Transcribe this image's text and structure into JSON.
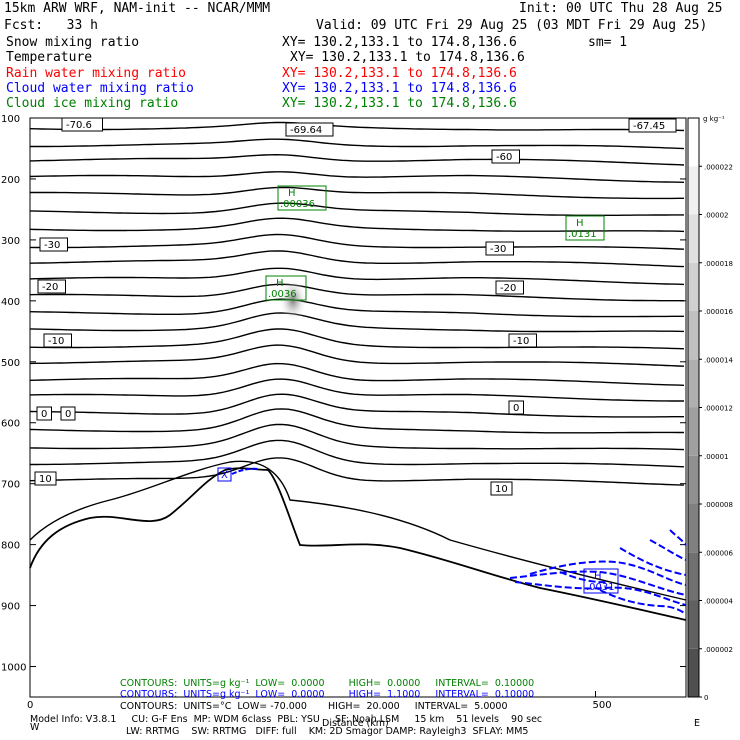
{
  "header": {
    "title": "15km ARW WRF, NAM-init -- NCAR/MMM",
    "init": "Init: 00 UTC Thu 28 Aug 25",
    "fcst": "Fcst:   33 h",
    "valid": "Valid: 09 UTC Fri 29 Aug 25 (03 MDT Fri 29 Aug 25)",
    "fields": [
      {
        "name": "Snow mixing ratio",
        "xy": "XY= 130.2,133.1 to 174.8,136.6",
        "extra": "sm= 1",
        "color": "#000000"
      },
      {
        "name": "Temperature",
        "xy": "XY= 130.2,133.1 to 174.8,136.6",
        "extra": "",
        "color": "#000000"
      },
      {
        "name": "Rain water mixing ratio",
        "xy": "XY= 130.2,133.1 to 174.8,136.6",
        "extra": "",
        "color": "#ff0000"
      },
      {
        "name": "Cloud water mixing ratio",
        "xy": "XY= 130.2,133.1 to 174.8,136.6",
        "extra": "",
        "color": "#0000ff"
      },
      {
        "name": "Cloud ice mixing ratio",
        "xy": "XY= 130.2,133.1 to 174.8,136.6",
        "extra": "",
        "color": "#008000"
      }
    ]
  },
  "chart_data": {
    "type": "contour-cross-section",
    "xlabel": "Distance (km)",
    "x_ticks": [
      "0",
      "500"
    ],
    "y_ticks": [
      "100",
      "200",
      "300",
      "400",
      "500",
      "600",
      "700",
      "800",
      "900",
      "1000"
    ],
    "y_tick_values": [
      100,
      200,
      300,
      400,
      500,
      600,
      700,
      800,
      900,
      1000
    ],
    "xlim": [
      0,
      580
    ],
    "ylim": [
      100,
      1050
    ],
    "colorbar": {
      "unit": "g kg⁻¹",
      "labels": [
        ".000022",
        ".00002",
        ".000018",
        ".000016",
        ".000014",
        ".000012",
        ".00001",
        ".000008",
        ".000006",
        ".000004",
        ".000002",
        "0"
      ],
      "values": [
        2.2e-05,
        2e-05,
        1.8e-05,
        1.6e-05,
        1.4e-05,
        1.2e-05,
        1e-05,
        8e-06,
        6e-06,
        4e-06,
        2e-06,
        0
      ],
      "range": [
        0,
        2.4e-05
      ],
      "colors": [
        "#ffffff",
        "#f0f0f0",
        "#e0e0e0",
        "#d0d0d0",
        "#c0c0c0",
        "#b0b0b0",
        "#a0a0a0",
        "#909090",
        "#808080",
        "#707070",
        "#606060",
        "#505050"
      ]
    },
    "temperature_contours": [
      {
        "label": "-70.6",
        "y": 122
      },
      {
        "label": "-69.64",
        "y": 130
      },
      {
        "label": "-67.45",
        "y": 126
      },
      {
        "label": "-60",
        "y": 158
      },
      {
        "label": "-30",
        "y": 246
      },
      {
        "label": "-20",
        "y": 288
      },
      {
        "label": "-10",
        "y": 341
      },
      {
        "label": "0",
        "y": 410
      },
      {
        "label": "10",
        "y": 480
      }
    ],
    "high_labels": [
      {
        "letter": "H",
        "value": ".00036",
        "color": "#008000"
      },
      {
        "letter": "H",
        "value": ".0131",
        "color": "#008000"
      },
      {
        "letter": "H",
        "value": ".0036",
        "color": "#008000"
      },
      {
        "letter": "H",
        "value": ".0031",
        "color": "#0000ff"
      }
    ],
    "cloud_water_marker": {
      "letter": "X",
      "color": "#0000ff"
    }
  },
  "footer": {
    "contours1": "CONTOURS:  UNITS=g kg⁻¹  LOW=  0.0000        HIGH=  0.0000     INTERVAL=  0.10000",
    "contours2": "CONTOURS:  UNITS=g kg⁻¹  LOW=  0.0000        HIGH=  1.1000     INTERVAL=  0.10000",
    "contours3": "CONTOURS:  UNITS=°C  LOW= -70.000       HIGH=  20.000     INTERVAL=  5.0000",
    "model1": "Model Info: V3.8.1     CU: G-F Ens  MP: WDM 6class  PBL: YSU     SF: Noah LSM     15 km    51 levels    90 sec",
    "model2": "LW: RRTMG    SW: RRTMG   DIFF: full    KM: 2D Smagor DAMP: Rayleigh3  SFLAY: MM5",
    "x_left": "W",
    "x_right": "E"
  }
}
